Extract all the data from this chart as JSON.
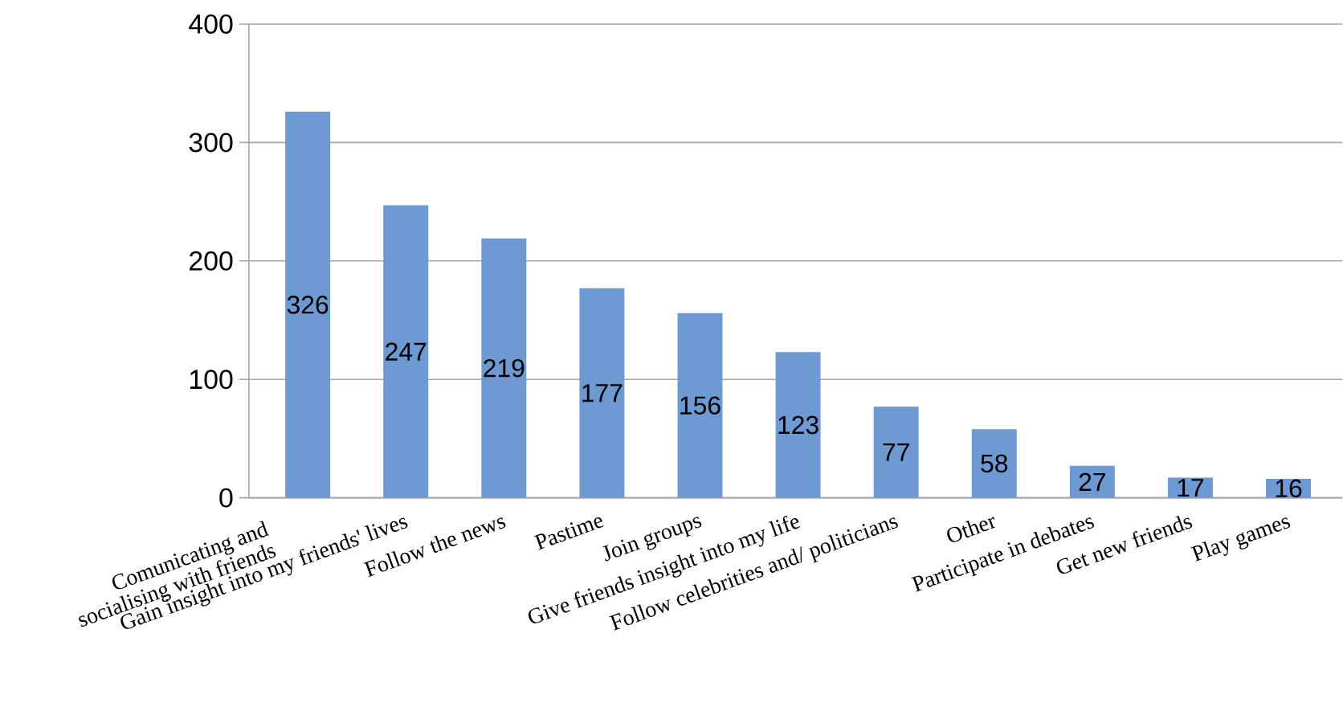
{
  "chart_data": {
    "type": "bar",
    "categories": [
      "Comunicating and socialising with friends",
      "Gain insight into my friends' lives",
      "Follow the news",
      "Pastime",
      "Join groups",
      "Give friends insight into my life",
      "Follow celebrities and/ politicians",
      "Other",
      "Participate in debates",
      "Get new friends",
      "Play games"
    ],
    "values": [
      326,
      247,
      219,
      177,
      156,
      123,
      77,
      58,
      27,
      17,
      16
    ],
    "color": "#6d9ad3",
    "ylim": [
      0,
      400
    ],
    "yticks": [
      0,
      100,
      200,
      300,
      400
    ],
    "grid": "y",
    "data_labels": true
  }
}
